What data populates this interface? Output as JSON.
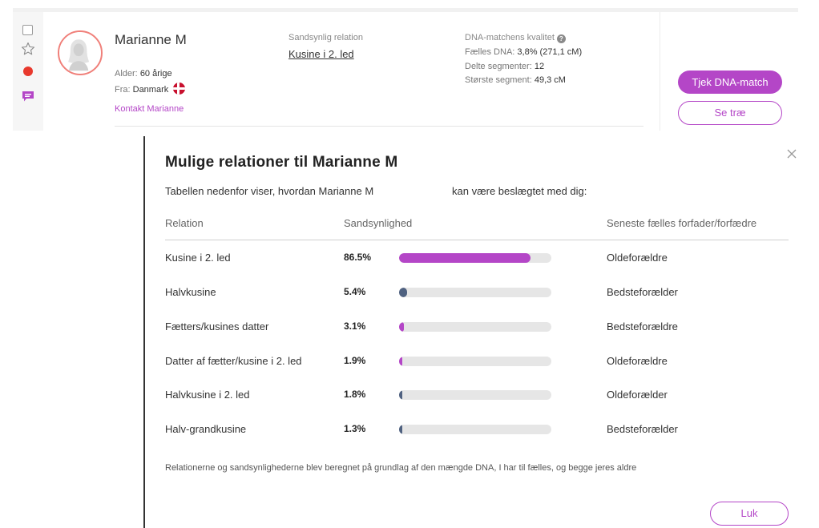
{
  "match": {
    "name": "Marianne M",
    "age_label": "Alder:",
    "age_value": "60 årige",
    "from_label": "Fra:",
    "from_value": "Danmark",
    "contact_link": "Kontakt Marianne",
    "relation_label": "Sandsynlig relation",
    "relation_value": "Kusine i 2. led",
    "quality_title": "DNA-matchens kvalitet",
    "shared_dna_label": "Fælles DNA:",
    "shared_dna_value": "3,8% (271,1 cM)",
    "segments_label": "Delte segmenter:",
    "segments_value": "12",
    "largest_label": "Største segment:",
    "largest_value": "49,3 cM",
    "review_button": "Tjek DNA-match",
    "tree_button": "Se træ",
    "status_dot_color": "#e8392d"
  },
  "dialog": {
    "title": "Mulige relationer til Marianne M",
    "intro_a": "Tabellen nedenfor viser, hvordan Marianne M",
    "intro_b": "kan være beslægtet med dig:",
    "headers": {
      "relation": "Relation",
      "probability": "Sandsynlighed",
      "ancestors": "Seneste fælles forfader/forfædre"
    },
    "rows": [
      {
        "relation": "Kusine i 2. led",
        "percent_label": "86.5%",
        "percent": 86.5,
        "ancestors": "Oldeforældre",
        "color": "#b446c7"
      },
      {
        "relation": "Halvkusine",
        "percent_label": "5.4%",
        "percent": 5.4,
        "ancestors": "Bedsteforælder",
        "color": "#4f6180"
      },
      {
        "relation": "Fætters/kusines datter",
        "percent_label": "3.1%",
        "percent": 3.1,
        "ancestors": "Bedsteforældre",
        "color": "#b446c7"
      },
      {
        "relation": "Datter af fætter/kusine i 2. led",
        "percent_label": "1.9%",
        "percent": 1.9,
        "ancestors": "Oldeforældre",
        "color": "#b446c7"
      },
      {
        "relation": "Halvkusine i 2. led",
        "percent_label": "1.8%",
        "percent": 1.8,
        "ancestors": "Oldeforælder",
        "color": "#4f6180"
      },
      {
        "relation": "Halv-grandkusine",
        "percent_label": "1.3%",
        "percent": 1.3,
        "ancestors": "Bedsteforælder",
        "color": "#4f6180"
      }
    ],
    "footnote": "Relationerne og sandsynlighederne blev beregnet på grundlag af den mængde DNA, I har til fælles, og begge jeres aldre",
    "close_button": "Luk"
  },
  "icons": {
    "checkbox": "checkbox-icon",
    "star": "star-icon",
    "status": "status-dot-icon",
    "message": "message-icon",
    "avatar": "avatar-icon",
    "flag": "denmark-flag-icon",
    "help": "help-icon",
    "close": "close-icon"
  },
  "colors": {
    "accent": "#b446c7",
    "secondary_bar": "#4f6180",
    "track": "#e6e6e6"
  }
}
